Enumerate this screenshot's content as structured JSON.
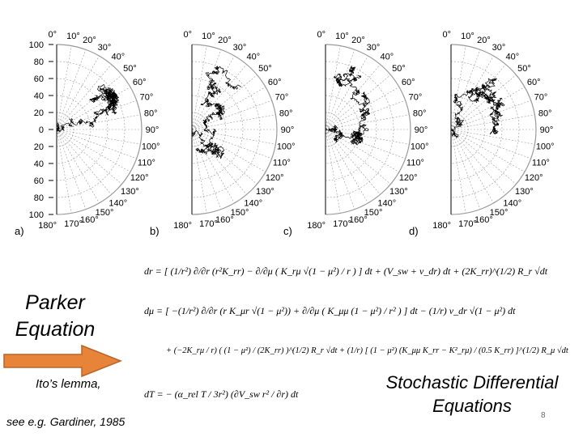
{
  "panels": [
    {
      "label": "a)",
      "show_radial_scale": true
    },
    {
      "label": "b)",
      "show_radial_scale": false
    },
    {
      "label": "c)",
      "show_radial_scale": false
    },
    {
      "label": "d)",
      "show_radial_scale": false
    }
  ],
  "radial_scale": [
    "100",
    "80",
    "60",
    "40",
    "20",
    "0",
    "20",
    "40",
    "60",
    "80",
    "100"
  ],
  "angle_labels": [
    "0°",
    "10°",
    "20°",
    "30°",
    "40°",
    "50°",
    "60°",
    "70°",
    "80°",
    "90°",
    "100°",
    "110°",
    "120°",
    "130°",
    "140°",
    "150°",
    "160°",
    "170°",
    "180°"
  ],
  "text": {
    "parker": "Parker Equation",
    "ito": "Ito’s lemma,",
    "gardiner": "see e.g. Gardiner, 1985",
    "sde": "Stochastic Differential Equations",
    "page_number": "8"
  },
  "equations": [
    "dr = [ (1/r²) ∂/∂r (r²K_rr) − ∂/∂μ ( K_rμ √(1 − μ²) / r ) ] dt + (V_sw + v_dr) dt + (2K_rr)^(1/2) R_r √dt",
    "dμ = [ −(1/r²) ∂/∂r (r K_μr √(1 − μ²)) + ∂/∂μ ( K_μμ (1 − μ²) / r² ) ] dt − (1/r) v_dr √(1 − μ²) dt",
    "+ (−2K_rμ / r) ( (1 − μ²) / (2K_rr) )^(1/2) R_r √dt + (1/r) [ (1 − μ²) (K_μμ K_rr − K²_rμ) / (0.5 K_rr) ]^(1/2) R_μ √dt",
    "dT = − (α_rel T / 3r²) (∂V_sw r² / ∂r) dt"
  ],
  "colors": {
    "trajectory": "#000000",
    "grid": "#9a9a9a",
    "arrow_fill": "#e8843a",
    "arrow_stroke": "#b8632a"
  }
}
